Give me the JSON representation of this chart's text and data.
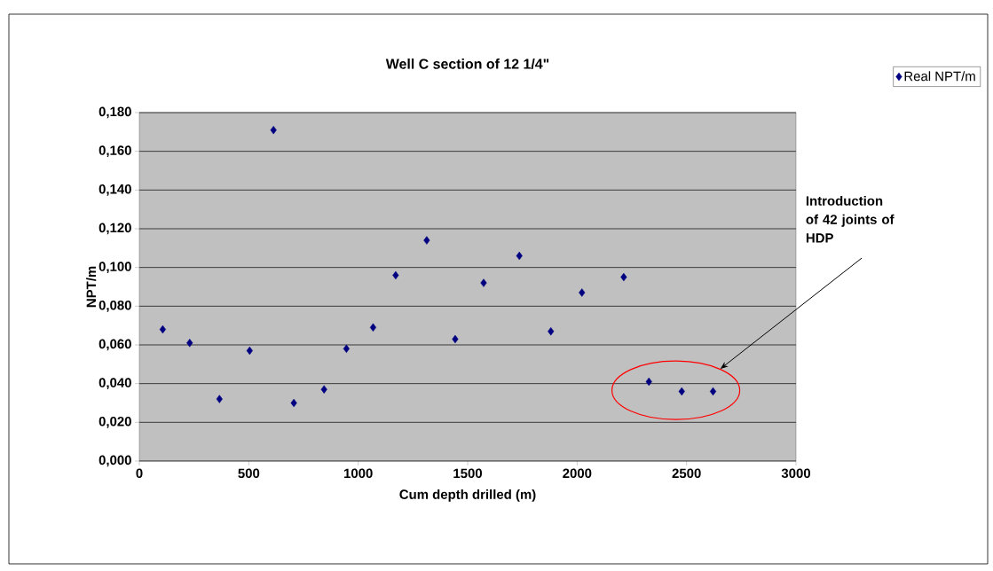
{
  "chart_data": {
    "type": "scatter",
    "title": "Well C section of 12 1/4\"",
    "xlabel": "Cum depth drilled (m)",
    "ylabel": "NPT/m",
    "x": [
      107,
      230,
      366,
      504,
      613,
      706,
      844,
      946,
      1068,
      1171,
      1313,
      1443,
      1573,
      1736,
      1880,
      2022,
      2213,
      2328,
      2478,
      2621
    ],
    "series": [
      {
        "name": "Real NPT/m",
        "color": "#000080",
        "values": [
          0.068,
          0.061,
          0.032,
          0.057,
          0.171,
          0.03,
          0.037,
          0.058,
          0.069,
          0.096,
          0.114,
          0.063,
          0.092,
          0.106,
          0.067,
          0.087,
          0.095,
          0.041,
          0.036,
          0.036
        ]
      }
    ],
    "xlim": [
      0,
      3000
    ],
    "xticks": [
      0,
      500,
      1000,
      1500,
      2000,
      2500,
      3000
    ],
    "ylim": [
      0,
      0.18
    ],
    "yticks": [
      {
        "value": 0,
        "label": "0,000"
      },
      {
        "value": 0.02,
        "label": "0,020"
      },
      {
        "value": 0.04,
        "label": "0,040"
      },
      {
        "value": 0.06,
        "label": "0,060"
      },
      {
        "value": 0.08,
        "label": "0,080"
      },
      {
        "value": 0.1,
        "label": "0,100"
      },
      {
        "value": 0.12,
        "label": "0,120"
      },
      {
        "value": 0.14,
        "label": "0,140"
      },
      {
        "value": 0.16,
        "label": "0,160"
      },
      {
        "value": 0.18,
        "label": "0,180"
      }
    ],
    "grid": "y",
    "legend": "top right",
    "marker": "diamond",
    "annotations": [
      "Introduction of 42 joints of HDP"
    ]
  }
}
